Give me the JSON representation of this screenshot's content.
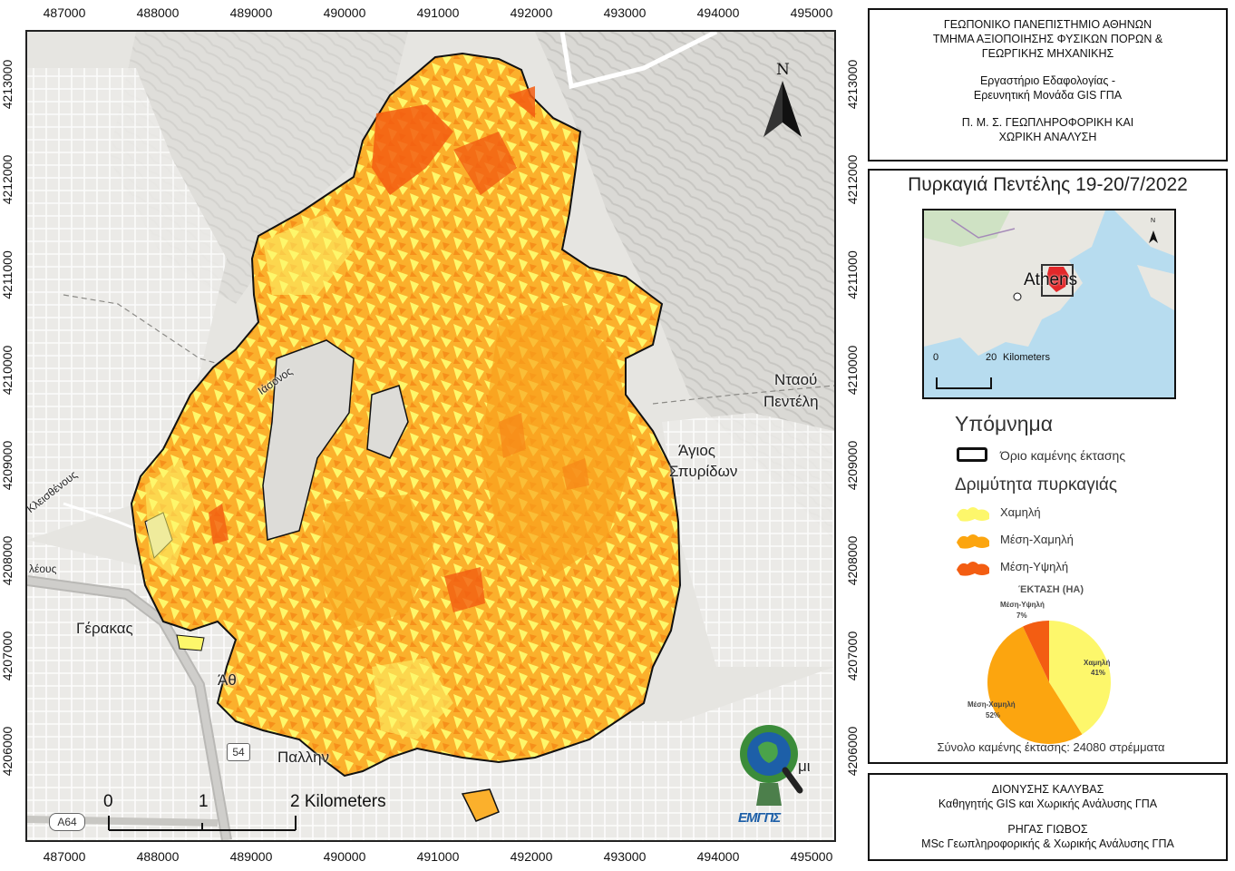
{
  "map": {
    "x_ticks_top": [
      "487000",
      "488000",
      "489000",
      "490000",
      "491000",
      "492000",
      "493000",
      "494000",
      "495000"
    ],
    "x_ticks_bottom": [
      "487000",
      "488000",
      "489000",
      "490000",
      "491000",
      "492000",
      "493000",
      "494000",
      "495000"
    ],
    "y_ticks_left": [
      "4213000",
      "4212000",
      "4211000",
      "4210000",
      "4209000",
      "4208000",
      "4207000",
      "4206000"
    ],
    "y_ticks_right": [
      "4213000",
      "4212000",
      "4211000",
      "4210000",
      "4209000",
      "4208000",
      "4207000",
      "4206000"
    ],
    "places": {
      "ntaou": "Νταού",
      "penteli": "Πεντέλη",
      "agios": "Άγιος",
      "spyridon": "Σπυρίδων",
      "gerakas": "Γέρακας",
      "athos": "Άθ",
      "pallini": "Παλλην",
      "iasonos": "Ιάσονος",
      "kleisthenous": "Κλεισθένους",
      "kleous": "λέους",
      "mi": "μι"
    },
    "road_badges": {
      "a64": "A64",
      "r54": "54"
    },
    "north_label": "N",
    "scalebar": {
      "t0": "0",
      "t1": "1",
      "t2": "2 Kilometers"
    }
  },
  "header": {
    "lines": [
      "ΓΕΩΠΟΝΙΚΟ ΠΑΝΕΠΙΣΤΗΜΙΟ ΑΘΗΝΩΝ",
      "ΤΜΗΜΑ ΑΞΙΟΠΟΙΗΣΗΣ ΦΥΣΙΚΩΝ ΠΟΡΩΝ &",
      "ΓΕΩΡΓΙΚΗΣ ΜΗΧΑΝΙΚΗΣ",
      "",
      "Εργαστήριο Εδαφολογίας -",
      "Ερευνητική Μονάδα GIS ΓΠΑ",
      "",
      "Π. Μ. Σ. ΓΕΩΠΛΗΡΟΦΟΡΙΚΗ ΚΑΙ",
      "ΧΩΡΙΚΗ ΑΝΑΛΥΣΗ"
    ]
  },
  "title": "Πυρκαγιά Πεντέλης 19-20/7/2022",
  "inset": {
    "city": "Athens",
    "scale_0": "0",
    "scale_20": "20",
    "scale_unit": "Kilometers",
    "north": "N"
  },
  "legend": {
    "title": "Υπόμνημα",
    "boundary_label": "Όριο καμένης έκτασης",
    "severity_title": "Δριμύτητα πυρκαγιάς",
    "classes": [
      {
        "label": "Χαμηλή",
        "color": "#fdf76b"
      },
      {
        "label": "Μέση-Χαμηλή",
        "color": "#fca50f"
      },
      {
        "label": "Μέση-Υψηλή",
        "color": "#f35d12"
      }
    ]
  },
  "chart_data": {
    "type": "pie",
    "title": "ΈΚΤΑΣΗ (HA)",
    "slices": [
      {
        "label": "Χαμηλή",
        "value": 41,
        "display": "41%",
        "color": "#fdf76b"
      },
      {
        "label": "Μέση-Χαμηλή",
        "value": 52,
        "display": "52%",
        "color": "#fca50f"
      },
      {
        "label": "Μέση-Υψηλή",
        "value": 7,
        "display": "7%",
        "color": "#f35d12"
      }
    ]
  },
  "total_text": "Σύνολο καμένης έκτασης: 24080 στρέμματα",
  "logo_text": "ΕΜΓΠΣ",
  "credits": {
    "name1": "ΔΙΟΝΥΣΗΣ ΚΑΛΥΒΑΣ",
    "role1": "Καθηγητής GIS και Χωρικής Ανάλυσης ΓΠΑ",
    "name2": "ΡΗΓΑΣ ΓΙΩΒΟΣ",
    "role2": "MSc Γεωπληροφορικής & Χωρικής Ανάλυσης ΓΠΑ"
  }
}
